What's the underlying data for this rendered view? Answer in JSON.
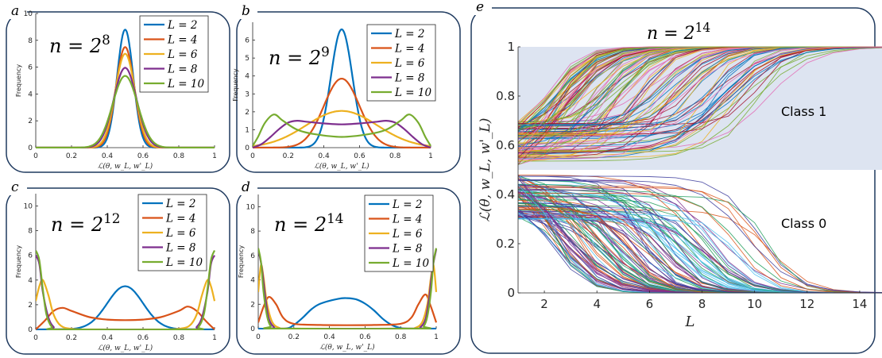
{
  "chart_data": [
    {
      "id": "a",
      "panel_label": "a",
      "type": "line",
      "annotation": {
        "base": "n = 2",
        "exp": "8"
      },
      "xlabel": "ℒ(θ, w_L, w'_L)",
      "ylabel": "Frequency",
      "xlim": [
        0,
        1
      ],
      "ylim": [
        0,
        10
      ],
      "xticks": [
        0,
        0.2,
        0.4,
        0.6,
        0.8,
        1
      ],
      "xtick_labels": [
        "0",
        "0.2",
        "0.4",
        "0.6",
        "0.8",
        "1"
      ],
      "yticks": [
        0,
        2,
        4,
        6,
        8,
        10
      ],
      "ytick_labels": [
        "0",
        "2",
        "4",
        "6",
        "8",
        "10"
      ],
      "legend_position": "top-right",
      "series": [
        {
          "name": "L = 2",
          "shape": "gauss",
          "mu": 0.5,
          "sigma": 0.045,
          "peak": 8.8
        },
        {
          "name": "L = 4",
          "shape": "gauss",
          "mu": 0.5,
          "sigma": 0.051,
          "peak": 7.5
        },
        {
          "name": "L = 6",
          "shape": "gauss",
          "mu": 0.5,
          "sigma": 0.055,
          "peak": 7.0
        },
        {
          "name": "L = 8",
          "shape": "gauss",
          "mu": 0.5,
          "sigma": 0.064,
          "peak": 5.95
        },
        {
          "name": "L = 10",
          "shape": "gauss",
          "mu": 0.5,
          "sigma": 0.07,
          "peak": 5.35
        }
      ]
    },
    {
      "id": "b",
      "panel_label": "b",
      "type": "line",
      "annotation": {
        "base": "n = 2",
        "exp": "9"
      },
      "xlabel": "ℒ(θ, w_L, w'_L)",
      "ylabel": "Frequency",
      "xlim": [
        0,
        1
      ],
      "ylim": [
        0,
        7
      ],
      "xticks": [
        0,
        0.2,
        0.4,
        0.6,
        0.8,
        1
      ],
      "xtick_labels": [
        "0",
        "0.2",
        "0.4",
        "0.6",
        "0.8",
        "1"
      ],
      "yticks": [
        0,
        1,
        2,
        3,
        4,
        5,
        6
      ],
      "ytick_labels": [
        "0",
        "1",
        "2",
        "3",
        "4",
        "5",
        "6"
      ],
      "legend_position": "top-right",
      "series": [
        {
          "name": "L = 2",
          "shape": "gauss",
          "mu": 0.5,
          "sigma": 0.06,
          "peak": 6.6
        },
        {
          "name": "L = 4",
          "shape": "gauss",
          "mu": 0.5,
          "sigma": 0.1,
          "peak": 3.85
        },
        {
          "name": "L = 6",
          "shape": "gauss",
          "mu": 0.5,
          "sigma": 0.2,
          "peak": 2.05
        },
        {
          "name": "L = 8",
          "shape": "pts",
          "points": [
            [
              0,
              0
            ],
            [
              0.05,
              0.2
            ],
            [
              0.1,
              0.6
            ],
            [
              0.15,
              1.05
            ],
            [
              0.2,
              1.4
            ],
            [
              0.25,
              1.5
            ],
            [
              0.3,
              1.45
            ],
            [
              0.4,
              1.35
            ],
            [
              0.5,
              1.3
            ],
            [
              0.6,
              1.35
            ],
            [
              0.7,
              1.45
            ],
            [
              0.75,
              1.5
            ],
            [
              0.8,
              1.4
            ],
            [
              0.85,
              1.05
            ],
            [
              0.9,
              0.6
            ],
            [
              0.95,
              0.2
            ],
            [
              1,
              0
            ]
          ]
        },
        {
          "name": "L = 10",
          "shape": "pts",
          "points": [
            [
              0,
              0.1
            ],
            [
              0.03,
              0.6
            ],
            [
              0.07,
              1.4
            ],
            [
              0.12,
              1.85
            ],
            [
              0.17,
              1.5
            ],
            [
              0.25,
              1.0
            ],
            [
              0.35,
              0.75
            ],
            [
              0.5,
              0.6
            ],
            [
              0.65,
              0.75
            ],
            [
              0.75,
              1.0
            ],
            [
              0.83,
              1.5
            ],
            [
              0.88,
              1.85
            ],
            [
              0.93,
              1.4
            ],
            [
              0.97,
              0.6
            ],
            [
              1,
              0.1
            ]
          ]
        }
      ]
    },
    {
      "id": "c",
      "panel_label": "c",
      "type": "line",
      "annotation": {
        "base": "n = 2",
        "exp": "12"
      },
      "xlabel": "ℒ(θ, w_L, w'_L)",
      "ylabel": "Frequency",
      "xlim": [
        0,
        1
      ],
      "ylim": [
        0,
        11
      ],
      "xticks": [
        0,
        0.2,
        0.4,
        0.6,
        0.8,
        1
      ],
      "xtick_labels": [
        "0",
        "0.2",
        "0.4",
        "0.6",
        "0.8",
        "1"
      ],
      "yticks": [
        0,
        2,
        4,
        6,
        8,
        10
      ],
      "ytick_labels": [
        "0",
        "2",
        "4",
        "6",
        "8",
        "10"
      ],
      "legend_position": "top-right",
      "series": [
        {
          "name": "L = 2",
          "shape": "gauss",
          "mu": 0.5,
          "sigma": 0.1,
          "peak": 3.5
        },
        {
          "name": "L = 4",
          "shape": "pts",
          "points": [
            [
              0,
              0
            ],
            [
              0.05,
              0.7
            ],
            [
              0.1,
              1.5
            ],
            [
              0.15,
              1.75
            ],
            [
              0.2,
              1.5
            ],
            [
              0.3,
              1.0
            ],
            [
              0.4,
              0.8
            ],
            [
              0.5,
              0.75
            ],
            [
              0.6,
              0.8
            ],
            [
              0.7,
              1.0
            ],
            [
              0.8,
              1.5
            ],
            [
              0.85,
              1.85
            ],
            [
              0.9,
              1.5
            ],
            [
              0.95,
              0.7
            ],
            [
              1,
              0
            ]
          ]
        },
        {
          "name": "L = 6",
          "shape": "pts",
          "points": [
            [
              0,
              2.3
            ],
            [
              0.02,
              3.5
            ],
            [
              0.04,
              4.0
            ],
            [
              0.07,
              2.8
            ],
            [
              0.1,
              1.2
            ],
            [
              0.14,
              0.3
            ],
            [
              0.2,
              0.05
            ],
            [
              0.3,
              0
            ],
            [
              0.7,
              0
            ],
            [
              0.8,
              0.05
            ],
            [
              0.86,
              0.3
            ],
            [
              0.9,
              1.2
            ],
            [
              0.93,
              2.8
            ],
            [
              0.96,
              4.0
            ],
            [
              0.98,
              3.5
            ],
            [
              1,
              2.3
            ]
          ]
        },
        {
          "name": "L = 8",
          "shape": "pts",
          "points": [
            [
              0,
              6.0
            ],
            [
              0.02,
              5.3
            ],
            [
              0.04,
              3.0
            ],
            [
              0.07,
              1.0
            ],
            [
              0.1,
              0.2
            ],
            [
              0.14,
              0
            ],
            [
              0.86,
              0
            ],
            [
              0.9,
              0.2
            ],
            [
              0.93,
              1.0
            ],
            [
              0.96,
              3.0
            ],
            [
              0.98,
              5.3
            ],
            [
              1,
              6.0
            ]
          ]
        },
        {
          "name": "L = 10",
          "shape": "pts",
          "points": [
            [
              0,
              6.4
            ],
            [
              0.02,
              5.6
            ],
            [
              0.04,
              3.2
            ],
            [
              0.06,
              1.2
            ],
            [
              0.09,
              0.2
            ],
            [
              0.13,
              0
            ],
            [
              0.87,
              0
            ],
            [
              0.91,
              0.2
            ],
            [
              0.94,
              1.2
            ],
            [
              0.96,
              3.2
            ],
            [
              0.98,
              5.6
            ],
            [
              1,
              6.4
            ]
          ]
        }
      ]
    },
    {
      "id": "d",
      "panel_label": "d",
      "type": "line",
      "annotation": {
        "base": "n = 2",
        "exp": "14"
      },
      "xlabel": "ℒ(θ, w_L, w'_L)",
      "ylabel": "Frequency",
      "xlim": [
        0,
        1
      ],
      "ylim": [
        0,
        11
      ],
      "xticks": [
        0,
        0.2,
        0.4,
        0.6,
        0.8,
        1
      ],
      "xtick_labels": [
        "0",
        "0.2",
        "0.4",
        "0.6",
        "0.8",
        "1"
      ],
      "yticks": [
        0,
        2,
        4,
        6,
        8,
        10
      ],
      "ytick_labels": [
        "0",
        "2",
        "4",
        "6",
        "8",
        "10"
      ],
      "legend_position": "top-right",
      "series": [
        {
          "name": "L = 2",
          "shape": "pts",
          "points": [
            [
              0,
              0
            ],
            [
              0.15,
              0
            ],
            [
              0.2,
              0.3
            ],
            [
              0.25,
              0.9
            ],
            [
              0.3,
              1.6
            ],
            [
              0.35,
              2.05
            ],
            [
              0.45,
              2.45
            ],
            [
              0.5,
              2.5
            ],
            [
              0.55,
              2.4
            ],
            [
              0.6,
              2.05
            ],
            [
              0.65,
              1.5
            ],
            [
              0.7,
              0.8
            ],
            [
              0.75,
              0.3
            ],
            [
              0.8,
              0.05
            ],
            [
              0.85,
              0
            ],
            [
              1,
              0
            ]
          ]
        },
        {
          "name": "L = 4",
          "shape": "pts",
          "points": [
            [
              0,
              0.5
            ],
            [
              0.03,
              1.8
            ],
            [
              0.06,
              2.6
            ],
            [
              0.1,
              2.0
            ],
            [
              0.14,
              0.9
            ],
            [
              0.2,
              0.4
            ],
            [
              0.35,
              0.3
            ],
            [
              0.5,
              0.28
            ],
            [
              0.65,
              0.3
            ],
            [
              0.8,
              0.4
            ],
            [
              0.86,
              0.9
            ],
            [
              0.9,
              2.0
            ],
            [
              0.94,
              2.8
            ],
            [
              0.97,
              1.8
            ],
            [
              1,
              0.5
            ]
          ]
        },
        {
          "name": "L = 6",
          "shape": "pts",
          "points": [
            [
              0,
              3.0
            ],
            [
              0.015,
              5.2
            ],
            [
              0.03,
              4.2
            ],
            [
              0.05,
              2.0
            ],
            [
              0.08,
              0.5
            ],
            [
              0.12,
              0.05
            ],
            [
              0.16,
              0
            ],
            [
              0.84,
              0
            ],
            [
              0.88,
              0.05
            ],
            [
              0.92,
              0.5
            ],
            [
              0.95,
              2.0
            ],
            [
              0.97,
              4.2
            ],
            [
              0.985,
              5.2
            ],
            [
              1,
              3.0
            ]
          ]
        },
        {
          "name": "L = 8",
          "shape": "pts",
          "points": [
            [
              0,
              6.5
            ],
            [
              0.02,
              5.0
            ],
            [
              0.04,
              2.5
            ],
            [
              0.06,
              0.8
            ],
            [
              0.09,
              0.1
            ],
            [
              0.12,
              0
            ],
            [
              0.88,
              0
            ],
            [
              0.91,
              0.1
            ],
            [
              0.94,
              0.8
            ],
            [
              0.96,
              2.5
            ],
            [
              0.98,
              5.0
            ],
            [
              1,
              6.5
            ]
          ]
        },
        {
          "name": "L = 10",
          "shape": "pts",
          "points": [
            [
              0,
              6.6
            ],
            [
              0.015,
              5.5
            ],
            [
              0.03,
              3.0
            ],
            [
              0.05,
              1.0
            ],
            [
              0.07,
              0.2
            ],
            [
              0.1,
              0
            ],
            [
              0.9,
              0
            ],
            [
              0.93,
              0.2
            ],
            [
              0.95,
              1.0
            ],
            [
              0.97,
              3.0
            ],
            [
              0.985,
              5.5
            ],
            [
              1,
              6.6
            ]
          ]
        }
      ]
    },
    {
      "id": "e",
      "panel_label": "e",
      "type": "line",
      "annotation": {
        "base": "n = 2",
        "exp": "14"
      },
      "xlabel": "L",
      "ylabel": "ℒ(θ, w_L, w'_L)",
      "xlim": [
        1,
        15
      ],
      "ylim": [
        0,
        1
      ],
      "xticks": [
        2,
        4,
        6,
        8,
        10,
        12,
        14
      ],
      "xtick_labels": [
        "2",
        "4",
        "6",
        "8",
        "10",
        "12",
        "14"
      ],
      "yticks": [
        0,
        0.2,
        0.4,
        0.6,
        0.8,
        1
      ],
      "ytick_labels": [
        "0",
        "0.2",
        "0.4",
        "0.6",
        "0.8",
        "1"
      ],
      "class_labels": [
        "Class 1",
        "Class 0"
      ],
      "shaded_region": [
        0.5,
        1
      ],
      "trajectories": "many curves diverging from 0.5 toward 1 (Class 1) or 0 (Class 0) as L increases"
    }
  ],
  "colors": {
    "series": [
      "#0072BD",
      "#D95319",
      "#EDB120",
      "#7E2F8E",
      "#77AC30"
    ],
    "class1_shade": "#DDE4F1",
    "frame": "#1F3A5F"
  }
}
